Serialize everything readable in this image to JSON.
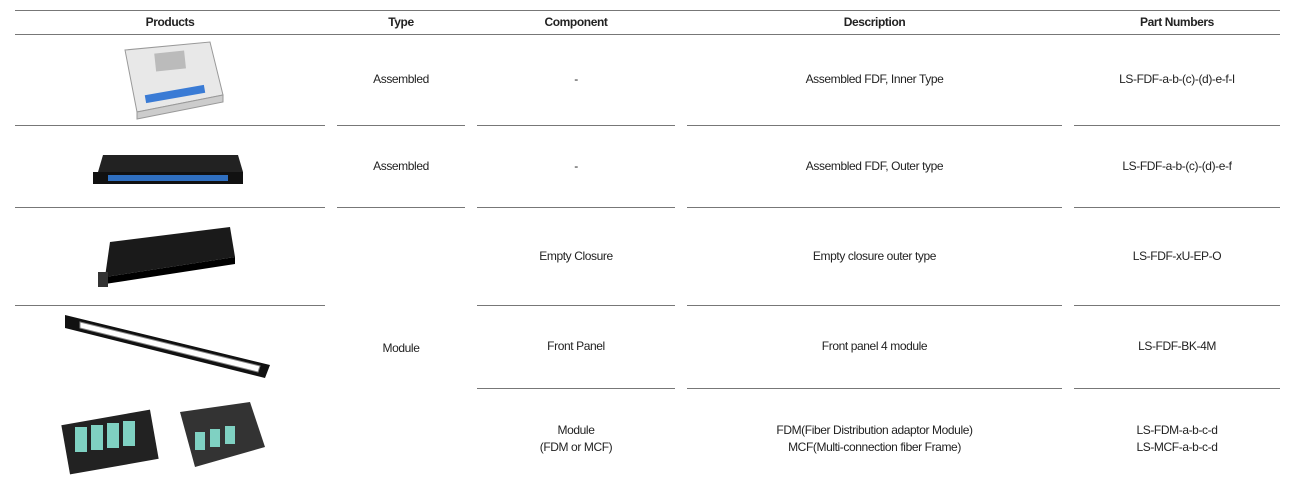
{
  "table": {
    "headers": [
      "Products",
      "Type",
      "Component",
      "Description",
      "Part Numbers"
    ],
    "rows": [
      {
        "type": "Assembled",
        "component": [
          "-"
        ],
        "description": [
          "Assembled FDF, Inner Type"
        ],
        "part_numbers": [
          "LS-FDF-a-b-(c)-(d)-e-f-I"
        ]
      },
      {
        "type": "Assembled",
        "component": [
          "-"
        ],
        "description": [
          "Assembled FDF, Outer type"
        ],
        "part_numbers": [
          "LS-FDF-a-b-(c)-(d)-e-f"
        ]
      },
      {
        "type": "Module",
        "component": [
          "Empty Closure"
        ],
        "description": [
          "Empty closure outer type"
        ],
        "part_numbers": [
          "LS-FDF-xU-EP-O"
        ]
      },
      {
        "component": [
          "Front Panel"
        ],
        "description": [
          "Front panel 4 module"
        ],
        "part_numbers": [
          "LS-FDF-BK-4M"
        ]
      },
      {
        "component": [
          "Module",
          "(FDM or MCF)"
        ],
        "description": [
          "FDM(Fiber Distribution adaptor Module)",
          "MCF(Multi-connection fiber Frame)"
        ],
        "part_numbers": [
          "LS-FDM-a-b-c-d",
          "LS-MCF-a-b-c-d"
        ]
      }
    ]
  }
}
